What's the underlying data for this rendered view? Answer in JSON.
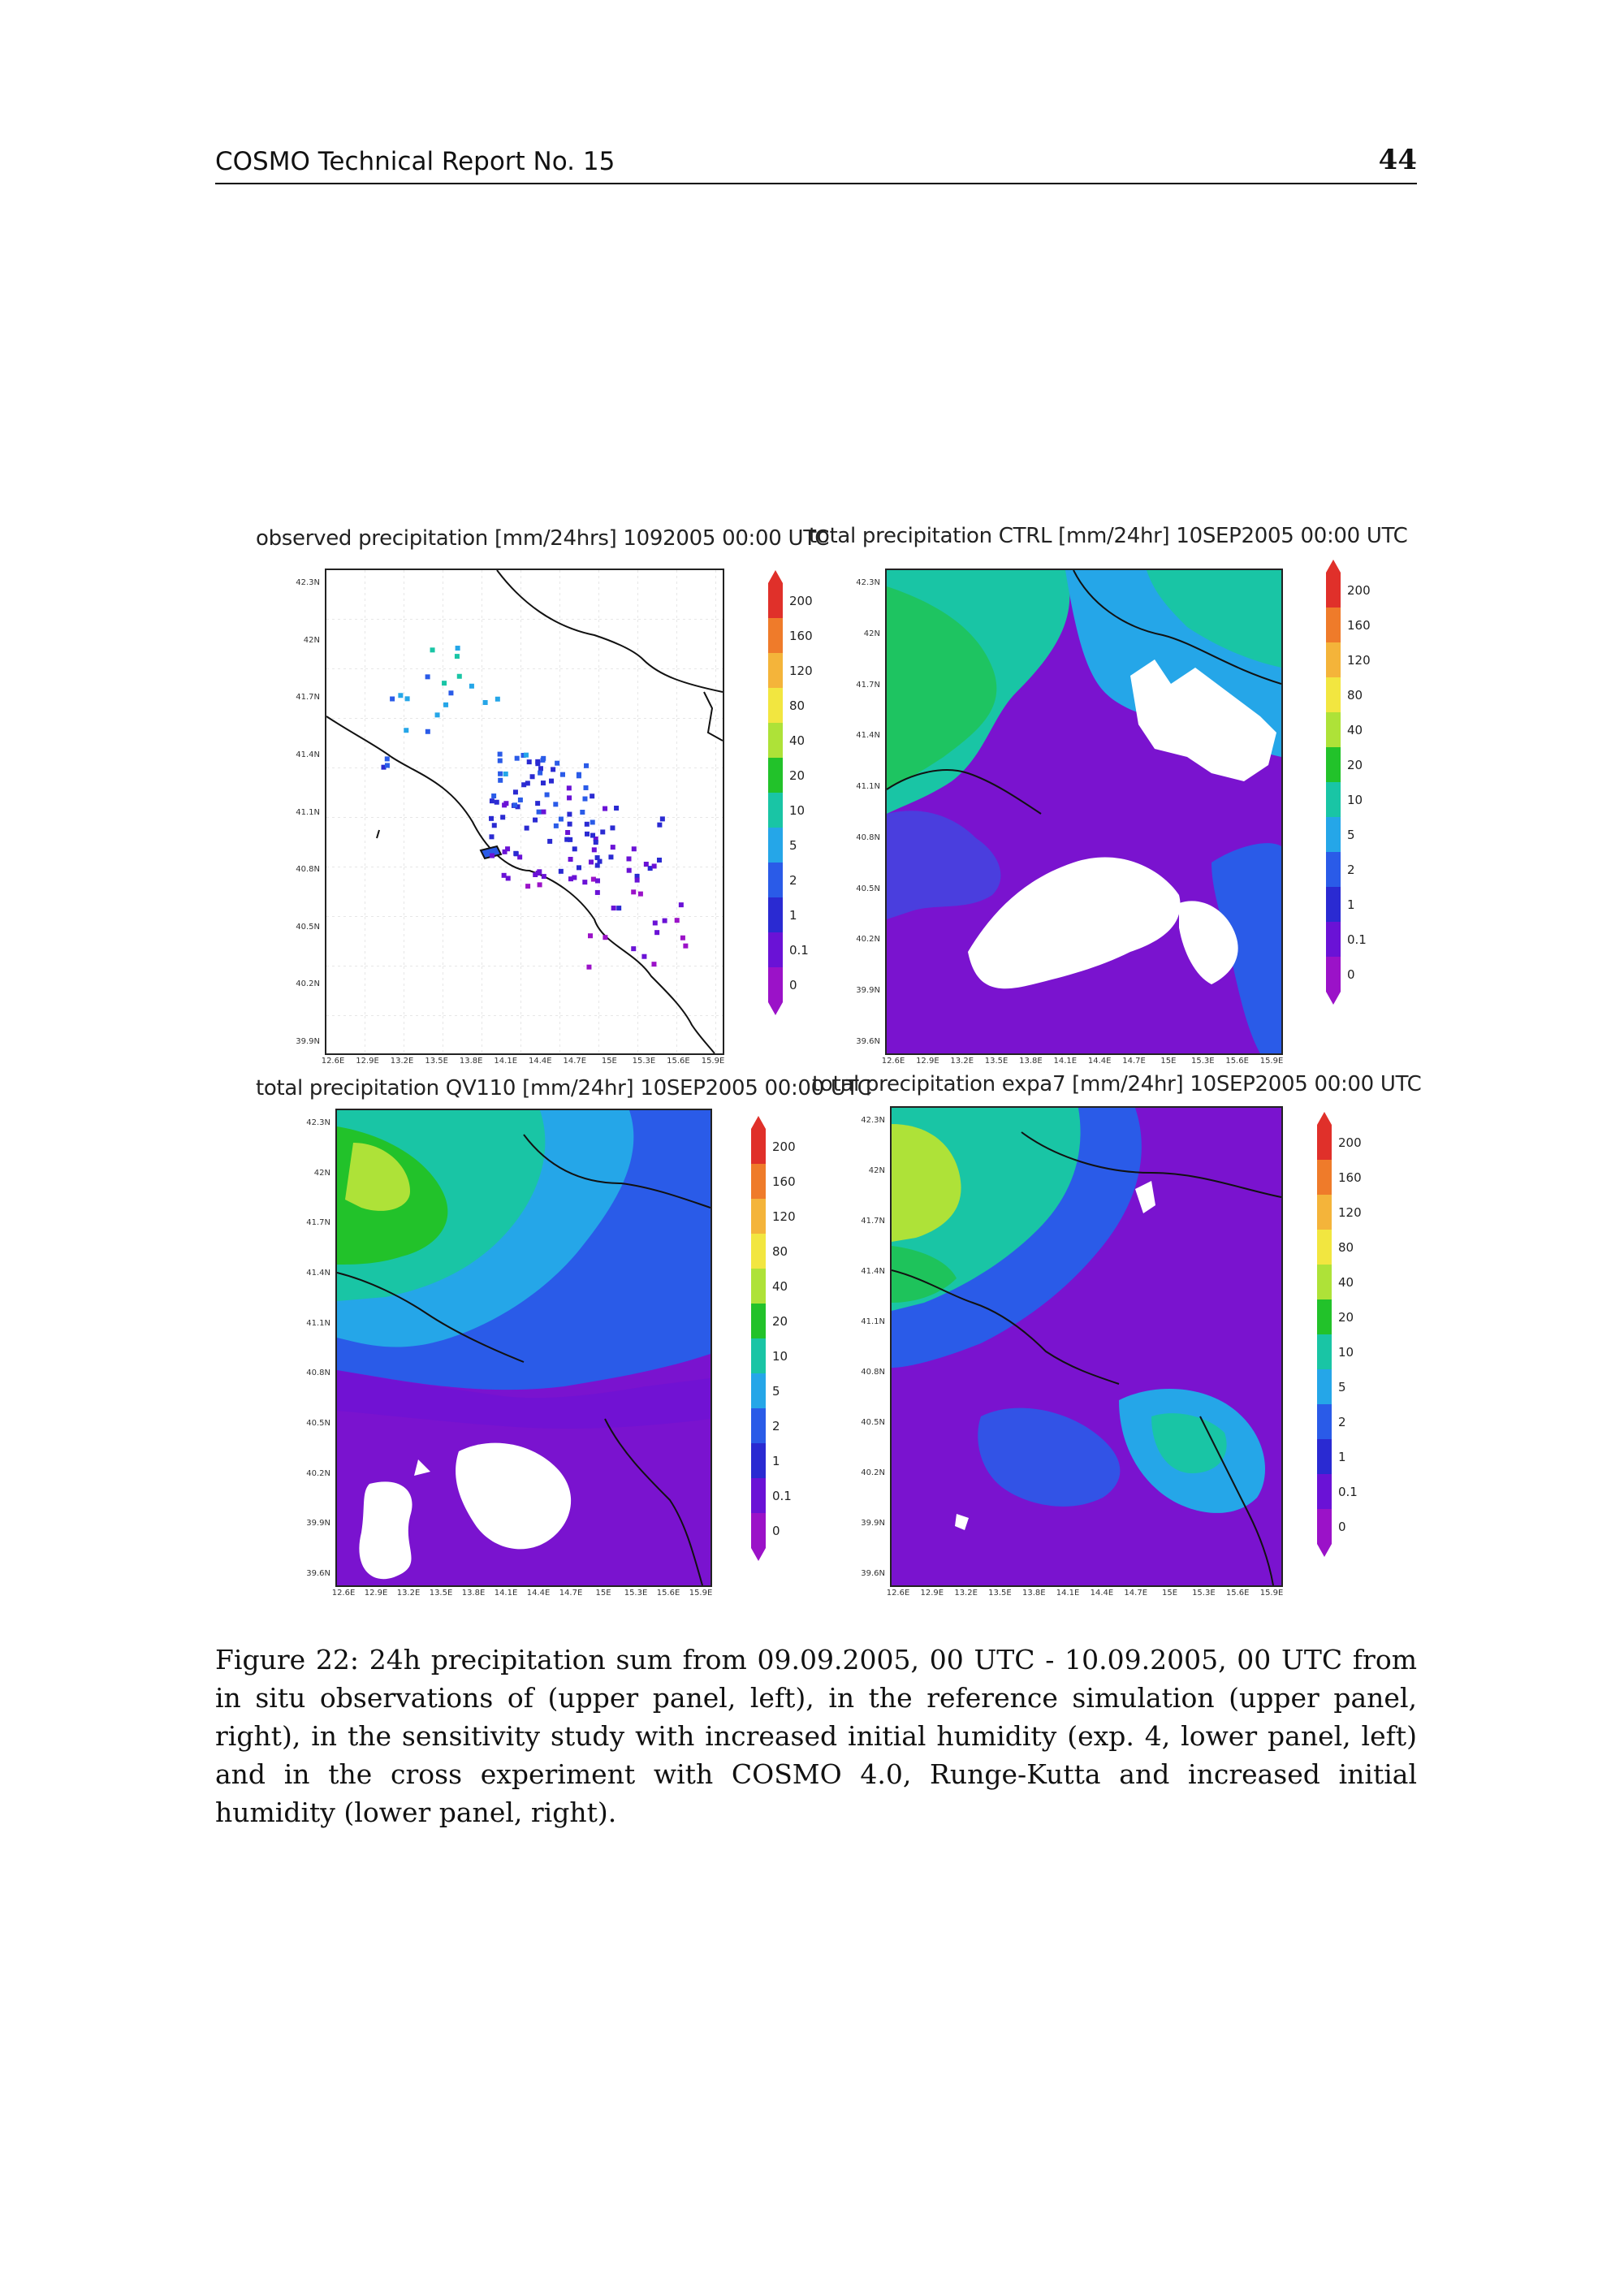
{
  "header": {
    "report": "COSMO Technical Report No. 15",
    "page_number": "44"
  },
  "panels": [
    {
      "title": "observed precipitation  [mm/24hrs] 1092005  00:00 UTC"
    },
    {
      "title": "total precipitation CTRL [mm/24hr] 10SEP2005  00:00 UTC"
    },
    {
      "title": "total precipitation QV110 [mm/24hr] 10SEP2005  00:00 UTC"
    },
    {
      "title": "total precipitation expa7 [mm/24hr] 10SEP2005  00:00 UTC"
    }
  ],
  "axes": {
    "lat_ticks": [
      "42.3N",
      "42N",
      "41.7N",
      "41.4N",
      "41.1N",
      "40.8N",
      "40.5N",
      "40.2N",
      "39.9N",
      "39.6N"
    ],
    "lon_ticks": [
      "12.6E",
      "12.9E",
      "13.2E",
      "13.5E",
      "13.8E",
      "14.1E",
      "14.4E",
      "14.7E",
      "15E",
      "15.3E",
      "15.6E",
      "15.9E"
    ]
  },
  "colorbar": {
    "levels": [
      "200",
      "160",
      "120",
      "80",
      "40",
      "20",
      "10",
      "5",
      "2",
      "1",
      "0.1",
      "0"
    ],
    "colors": [
      "#e0302a",
      "#ef7b2a",
      "#f4b43a",
      "#f2e640",
      "#aee238",
      "#22c22a",
      "#19c5a5",
      "#25a6e8",
      "#2a5be8",
      "#2a2ad2",
      "#6a12d6",
      "#9b12c8"
    ]
  },
  "caption": "Figure 22: 24h precipitation sum from 09.09.2005, 00 UTC - 10.09.2005, 00 UTC from in situ observations of (upper panel, left), in the reference simulation (upper panel, right), in the sensitivity study with increased initial humidity (exp. 4, lower panel, left) and in the cross experiment with COSMO 4.0, Runge-Kutta and increased initial humidity (lower panel, right)."
}
